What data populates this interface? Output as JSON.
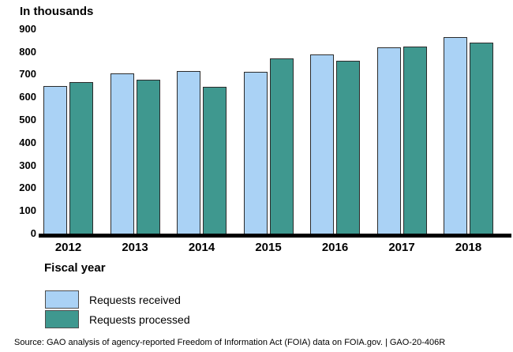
{
  "chart_data": {
    "type": "bar",
    "title": "In thousands",
    "xlabel": "Fiscal year",
    "ylabel": "In thousands",
    "categories": [
      "2012",
      "2013",
      "2014",
      "2015",
      "2016",
      "2017",
      "2018"
    ],
    "series": [
      {
        "name": "Requests received",
        "color": "#aad2f5",
        "values": [
          651,
          704,
          714,
          713,
          789,
          818,
          864
        ]
      },
      {
        "name": "Requests processed",
        "color": "#3f988f",
        "values": [
          666,
          678,
          647,
          770,
          762,
          823,
          841
        ]
      }
    ],
    "ylim": [
      0,
      900
    ],
    "ytick_step": 100,
    "grid": false,
    "legend_position": "below-left",
    "bar_border_color": "#2b2b2b",
    "axis_color": "#000000"
  },
  "footer": {
    "source": "Source: GAO analysis of agency-reported Freedom of Information Act (FOIA) data on FOIA.gov.  |  GAO-20-406R"
  }
}
